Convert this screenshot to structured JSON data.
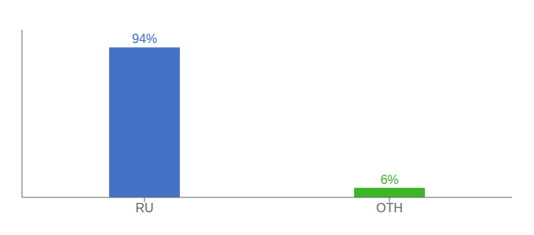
{
  "chart_data": {
    "type": "bar",
    "categories": [
      "RU",
      "OTH"
    ],
    "values": [
      94,
      6
    ],
    "value_labels": [
      "94%",
      "6%"
    ],
    "colors": [
      "#4472c4",
      "#3cb529"
    ],
    "ylim": [
      0,
      105
    ],
    "data_labels": true,
    "tick_labels": "x",
    "grid": false
  }
}
